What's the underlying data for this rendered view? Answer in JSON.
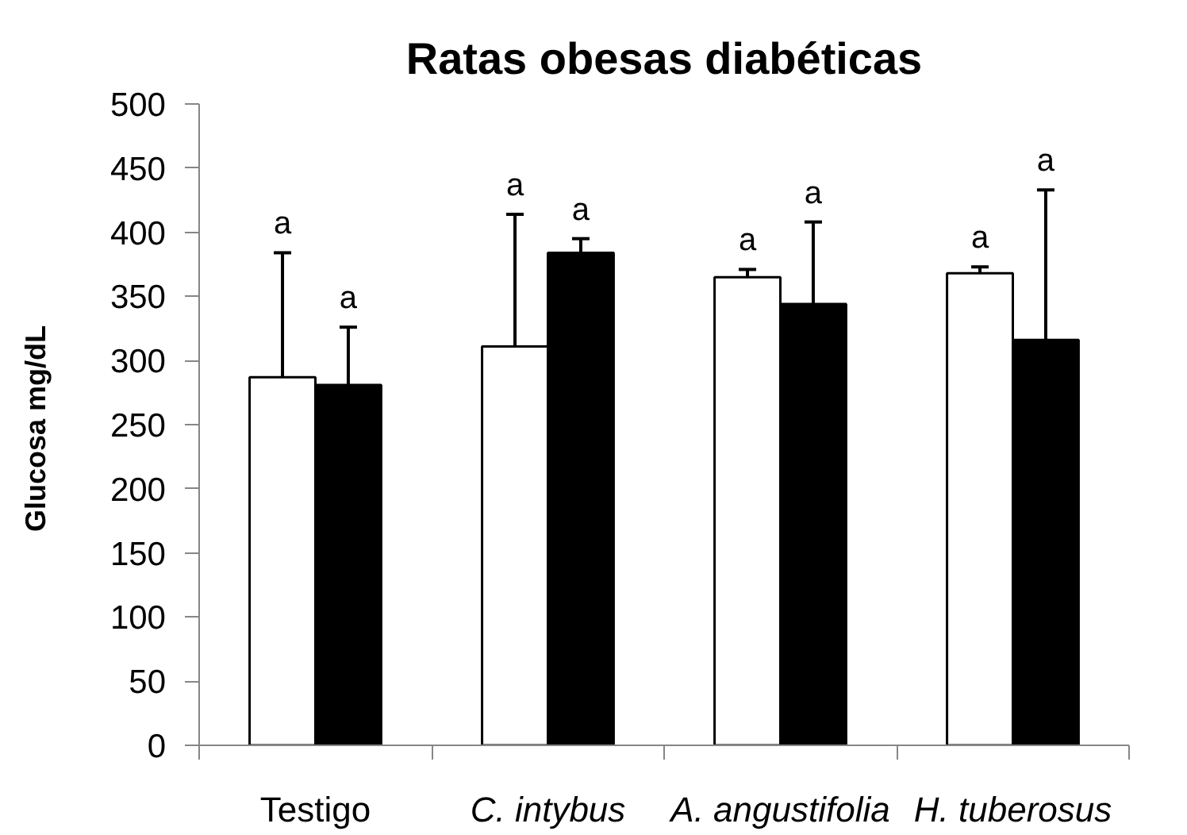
{
  "chart_data": {
    "type": "bar",
    "title": "Ratas obesas diabéticas",
    "ylabel": "Glucosa  mg/dL",
    "categories": [
      "Testigo",
      "C. intybus",
      "A. angustifolia",
      "H. tuberosus"
    ],
    "series": [
      {
        "color": "#ffffff",
        "values": [
          287,
          311,
          365,
          368
        ],
        "errors": [
          97,
          103,
          6,
          5
        ]
      },
      {
        "color": "#000000",
        "values": [
          281,
          384,
          344,
          316
        ],
        "errors": [
          45,
          11,
          64,
          117
        ]
      }
    ],
    "annotations": [
      "a",
      "a",
      "a",
      "a",
      "a",
      "a",
      "a",
      "a"
    ],
    "ylim": [
      0,
      500
    ],
    "yticks": [
      0,
      50,
      100,
      150,
      200,
      250,
      300,
      350,
      400,
      450,
      500
    ]
  }
}
